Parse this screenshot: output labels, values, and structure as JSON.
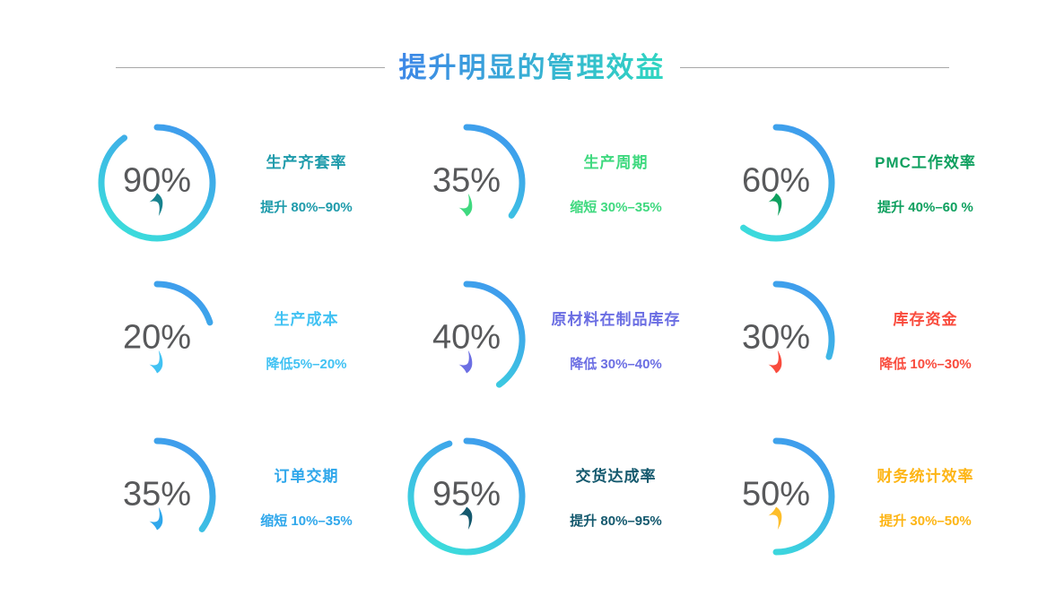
{
  "header": {
    "title": "提升明显的管理效益",
    "title_gradient": [
      "#3E86E8",
      "#2FD8C0"
    ],
    "divider_color": "#a8a8a8"
  },
  "ring": {
    "start_color": "#3F98EE",
    "end_color": "#3BE2DA",
    "stroke_width": 7
  },
  "percent_text_color": "#58595b",
  "cards": [
    {
      "title": "生产齐套率",
      "subtitle": "提升 80%–90%",
      "percent": 90,
      "percent_label": "90%",
      "direction": "up",
      "accent": "#1E9BAB",
      "arrow_color": "#17828E"
    },
    {
      "title": "生产周期",
      "subtitle": "缩短 30%–35%",
      "percent": 35,
      "percent_label": "35%",
      "direction": "down",
      "accent": "#3FD97F",
      "arrow_color": "#3FD97F"
    },
    {
      "title": "PMC工作效率",
      "subtitle": "提升 40%–60 %",
      "percent": 60,
      "percent_label": "60%",
      "direction": "up",
      "accent": "#0FA05F",
      "arrow_color": "#0FA05F"
    },
    {
      "title": "生产成本",
      "subtitle": "降低5%–20%",
      "percent": 20,
      "percent_label": "20%",
      "direction": "down",
      "accent": "#41C2F3",
      "arrow_color": "#41C2F3"
    },
    {
      "title": "原材料在制品库存",
      "subtitle": "降低 30%–40%",
      "percent": 40,
      "percent_label": "40%",
      "direction": "down",
      "accent": "#6B6EE3",
      "arrow_color": "#6B6EE3"
    },
    {
      "title": "库存资金",
      "subtitle": "降低 10%–30%",
      "percent": 30,
      "percent_label": "30%",
      "direction": "down",
      "accent": "#F94B3D",
      "arrow_color": "#F94B3D"
    },
    {
      "title": "订单交期",
      "subtitle": "缩短 10%–35%",
      "percent": 35,
      "percent_label": "35%",
      "direction": "down",
      "accent": "#2FA7EB",
      "arrow_color": "#2FA7EB"
    },
    {
      "title": "交货达成率",
      "subtitle": "提升 80%–95%",
      "percent": 95,
      "percent_label": "95%",
      "direction": "up",
      "accent": "#14596E",
      "arrow_color": "#14596E"
    },
    {
      "title": "财务统计效率",
      "subtitle": "提升 30%–50%",
      "percent": 50,
      "percent_label": "50%",
      "direction": "up",
      "accent": "#FDB515",
      "arrow_color": "#FDBE2A"
    }
  ],
  "chart_data": {
    "type": "pie",
    "subtype": "gauge-rings-3x3",
    "title": "提升明显的管理效益",
    "units": "%",
    "categories": [
      "生产齐套率",
      "生产周期",
      "PMC工作效率",
      "生产成本",
      "原材料在制品库存",
      "库存资金",
      "订单交期",
      "交货达成率",
      "财务统计效率"
    ],
    "values": [
      90,
      35,
      60,
      20,
      40,
      30,
      35,
      95,
      50
    ],
    "annotations": [
      "提升 80%–90%",
      "缩短 30%–35%",
      "提升 40%–60 %",
      "降低5%–20%",
      "降低 30%–40%",
      "降低 10%–30%",
      "缩短 10%–35%",
      "提升 80%–95%",
      "提升 30%–50%"
    ],
    "directions": [
      "up",
      "down",
      "up",
      "down",
      "down",
      "down",
      "down",
      "up",
      "up"
    ],
    "layout": "3x3 grid of partial-ring gauges; each arc starts at 12 o'clock and sweeps clockwise value% of 360°, stroke gradient blue #3F98EE to cyan #3BE2DA, grid off, no legend"
  }
}
